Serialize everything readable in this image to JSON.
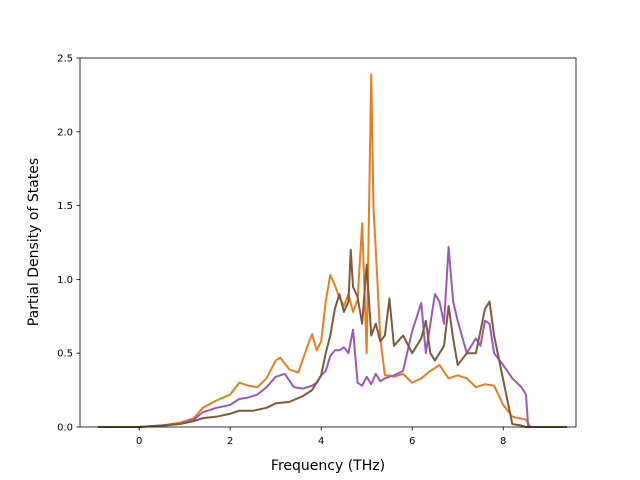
{
  "chart_data": {
    "type": "line",
    "title": "",
    "xlabel": "Frequency (THz)",
    "ylabel": "Partial Density of States",
    "xlim": [
      -1.3,
      9.6
    ],
    "ylim": [
      0,
      2.5
    ],
    "xticks": [
      0,
      2,
      4,
      6,
      8
    ],
    "yticks": [
      0.0,
      0.5,
      1.0,
      1.5,
      2.0,
      2.5
    ],
    "xtick_labels": [
      "0",
      "2",
      "4",
      "6",
      "8"
    ],
    "ytick_labels": [
      "0.0",
      "0.5",
      "1.0",
      "1.5",
      "2.0",
      "2.5"
    ],
    "grid": false,
    "legend": "none",
    "series": [
      {
        "color": "#e67e22",
        "x": [
          -0.9,
          0,
          0.5,
          0.9,
          1.2,
          1.4,
          1.7,
          2.0,
          2.2,
          2.4,
          2.6,
          2.8,
          3.0,
          3.1,
          3.3,
          3.5,
          3.7,
          3.8,
          3.9,
          4.0,
          4.1,
          4.2,
          4.3,
          4.4,
          4.5,
          4.6,
          4.7,
          4.8,
          4.9,
          5.0,
          5.1,
          5.15,
          5.2,
          5.3,
          5.4,
          5.5,
          5.6,
          5.8,
          6.0,
          6.2,
          6.4,
          6.6,
          6.8,
          7.0,
          7.2,
          7.4,
          7.6,
          7.8,
          8.0,
          8.2,
          8.5,
          8.6,
          9.4
        ],
        "y": [
          0,
          0,
          0.01,
          0.03,
          0.06,
          0.13,
          0.18,
          0.22,
          0.3,
          0.28,
          0.27,
          0.33,
          0.45,
          0.47,
          0.39,
          0.37,
          0.55,
          0.63,
          0.52,
          0.58,
          0.85,
          1.03,
          0.96,
          0.88,
          0.82,
          0.9,
          0.78,
          0.86,
          1.38,
          0.5,
          2.39,
          1.48,
          1.2,
          0.6,
          0.35,
          0.35,
          0.34,
          0.36,
          0.3,
          0.33,
          0.38,
          0.42,
          0.33,
          0.35,
          0.33,
          0.27,
          0.29,
          0.28,
          0.15,
          0.07,
          0.05,
          0,
          0
        ]
      },
      {
        "color": "#9b59b6",
        "x": [
          -0.9,
          0,
          0.5,
          0.9,
          1.2,
          1.4,
          1.7,
          2.0,
          2.2,
          2.4,
          2.6,
          2.8,
          3.0,
          3.2,
          3.4,
          3.6,
          3.8,
          3.9,
          4.0,
          4.1,
          4.2,
          4.3,
          4.4,
          4.5,
          4.6,
          4.7,
          4.8,
          4.9,
          5.0,
          5.1,
          5.2,
          5.3,
          5.4,
          5.6,
          5.8,
          6.0,
          6.2,
          6.3,
          6.4,
          6.5,
          6.6,
          6.7,
          6.8,
          6.9,
          7.0,
          7.2,
          7.4,
          7.5,
          7.6,
          7.7,
          7.8,
          8.0,
          8.2,
          8.4,
          8.5,
          8.55,
          9.4
        ],
        "y": [
          0,
          0,
          0.01,
          0.02,
          0.05,
          0.1,
          0.13,
          0.15,
          0.19,
          0.2,
          0.22,
          0.27,
          0.34,
          0.36,
          0.27,
          0.26,
          0.28,
          0.3,
          0.35,
          0.38,
          0.48,
          0.52,
          0.52,
          0.54,
          0.5,
          0.66,
          0.3,
          0.28,
          0.34,
          0.29,
          0.36,
          0.31,
          0.33,
          0.35,
          0.38,
          0.65,
          0.84,
          0.5,
          0.7,
          0.9,
          0.85,
          0.7,
          1.22,
          0.85,
          0.72,
          0.5,
          0.6,
          0.55,
          0.72,
          0.7,
          0.5,
          0.42,
          0.33,
          0.27,
          0.22,
          0,
          0
        ]
      },
      {
        "color": "#7d5a3c",
        "x": [
          -0.9,
          0,
          0.5,
          0.9,
          1.2,
          1.4,
          1.7,
          2.0,
          2.2,
          2.5,
          2.8,
          3.0,
          3.3,
          3.6,
          3.8,
          4.0,
          4.1,
          4.2,
          4.3,
          4.4,
          4.5,
          4.6,
          4.65,
          4.7,
          4.8,
          4.9,
          5.0,
          5.1,
          5.2,
          5.3,
          5.4,
          5.5,
          5.6,
          5.8,
          6.0,
          6.2,
          6.3,
          6.4,
          6.5,
          6.6,
          6.7,
          6.8,
          6.9,
          7.0,
          7.2,
          7.4,
          7.6,
          7.7,
          7.8,
          8.0,
          8.2,
          8.4,
          8.5,
          9.4
        ],
        "y": [
          0,
          0,
          0.01,
          0.02,
          0.04,
          0.06,
          0.07,
          0.09,
          0.11,
          0.11,
          0.13,
          0.16,
          0.17,
          0.21,
          0.25,
          0.35,
          0.5,
          0.62,
          0.8,
          0.9,
          0.78,
          0.85,
          1.2,
          0.95,
          0.88,
          0.7,
          1.1,
          0.62,
          0.7,
          0.58,
          0.62,
          0.87,
          0.55,
          0.62,
          0.5,
          0.6,
          0.72,
          0.5,
          0.45,
          0.5,
          0.55,
          0.82,
          0.6,
          0.42,
          0.5,
          0.5,
          0.8,
          0.85,
          0.62,
          0.32,
          0.02,
          0.01,
          0,
          0
        ]
      }
    ]
  }
}
